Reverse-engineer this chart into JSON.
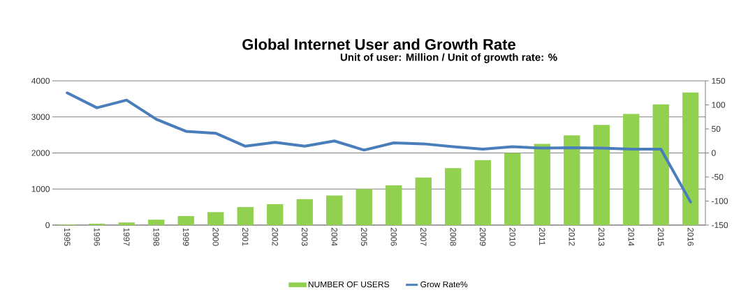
{
  "chart_data": {
    "type": "bar",
    "title": "Global Internet User and Growth Rate",
    "subtitle": "Unit of user: Million / Unit of growth rate: %",
    "categories": [
      "1995",
      "1996",
      "1997",
      "1998",
      "1999",
      "2000",
      "2001",
      "2002",
      "2003",
      "2004",
      "2005",
      "2006",
      "2007",
      "2008",
      "2009",
      "2010",
      "2011",
      "2012",
      "2013",
      "2014",
      "2015",
      "2016"
    ],
    "series": [
      {
        "name": "NUMBER OF USERS",
        "color": "#92d050",
        "values": [
          20,
          40,
          70,
          150,
          250,
          360,
          500,
          580,
          720,
          820,
          1000,
          1100,
          1320,
          1580,
          1800,
          2000,
          2250,
          2490,
          2780,
          3080,
          3350,
          3680
        ]
      },
      {
        "name": "Grow Rate%",
        "type": "line",
        "axis": "y2",
        "color": "#4a7ebb",
        "values": [
          125,
          94,
          110,
          70,
          45,
          41,
          14,
          22,
          14,
          25,
          6,
          21,
          19,
          13,
          8,
          13,
          10,
          11,
          10,
          8,
          8,
          -102
        ]
      }
    ],
    "ylim": [
      0,
      4000
    ],
    "yticks": [
      0,
      1000,
      2000,
      3000,
      4000
    ],
    "y2lim": [
      -150,
      150
    ],
    "y2ticks": [
      -150,
      -100,
      -50,
      0,
      50,
      100,
      150
    ],
    "grid": "y",
    "legend": "bottom",
    "line_style": "solid",
    "marker": "none"
  }
}
